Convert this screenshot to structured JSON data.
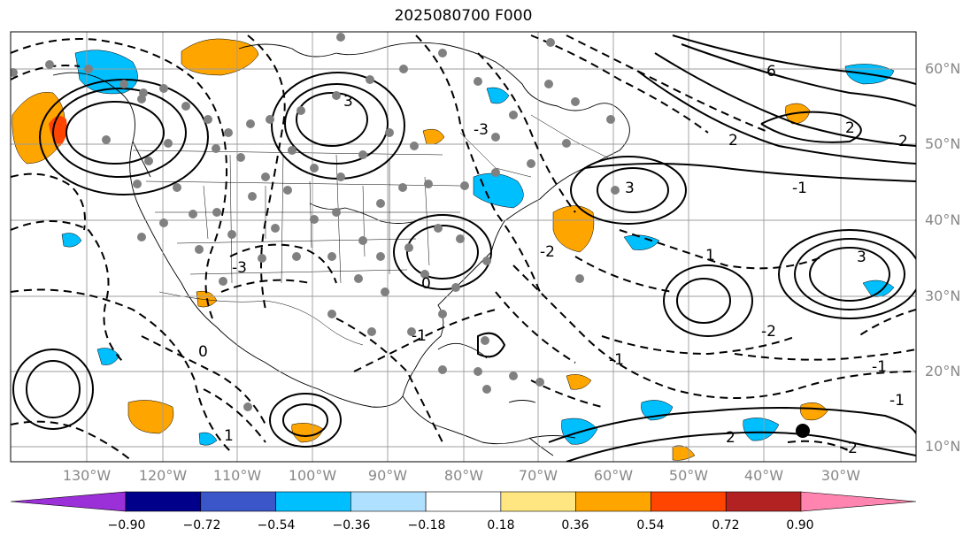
{
  "title": "2025080700 F000",
  "latitude_labels": [
    "60°N",
    "50°N",
    "40°N",
    "30°N",
    "20°N",
    "10°N"
  ],
  "longitude_labels": [
    "130°W",
    "120°W",
    "110°W",
    "100°W",
    "90°W",
    "80°W",
    "70°W",
    "60°W",
    "50°W",
    "40°W",
    "30°W"
  ],
  "colorbar": {
    "tick_labels": [
      "−0.90",
      "−0.72",
      "−0.54",
      "−0.36",
      "−0.18",
      "0.18",
      "0.36",
      "0.54",
      "0.72",
      "0.90"
    ],
    "colors": [
      "#9b30d9",
      "#00008b",
      "#3a56c8",
      "#00bfff",
      "#b0e0ff",
      "#ffffff",
      "#ffe680",
      "#ffa500",
      "#ff4500",
      "#b22222",
      "#ff85b0"
    ]
  },
  "contour_labels": [
    "6",
    "3",
    "3",
    "2",
    "2",
    "1",
    "0",
    "-1",
    "-1",
    "-2",
    "-3",
    "-3",
    "3",
    "-2",
    "2",
    "1",
    "0",
    "-2",
    "-1",
    "-1",
    "2",
    "-1"
  ],
  "markers": {
    "dot_color": "#808080",
    "point_color": "#000000"
  }
}
